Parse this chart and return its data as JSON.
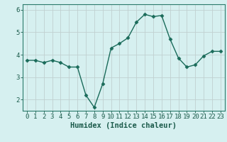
{
  "x": [
    0,
    1,
    2,
    3,
    4,
    5,
    6,
    7,
    8,
    9,
    10,
    11,
    12,
    13,
    14,
    15,
    16,
    17,
    18,
    19,
    20,
    21,
    22,
    23
  ],
  "y": [
    3.75,
    3.75,
    3.65,
    3.75,
    3.65,
    3.45,
    3.45,
    2.2,
    1.65,
    2.7,
    4.3,
    4.5,
    4.75,
    5.45,
    5.8,
    5.7,
    5.75,
    4.7,
    3.85,
    3.45,
    3.55,
    3.95,
    4.15,
    4.15
  ],
  "xlabel": "Humidex (Indice chaleur)",
  "ylim": [
    1.5,
    6.25
  ],
  "xlim": [
    -0.5,
    23.5
  ],
  "yticks": [
    2,
    3,
    4,
    5,
    6
  ],
  "xticks": [
    0,
    1,
    2,
    3,
    4,
    5,
    6,
    7,
    8,
    9,
    10,
    11,
    12,
    13,
    14,
    15,
    16,
    17,
    18,
    19,
    20,
    21,
    22,
    23
  ],
  "line_color": "#1a6b5a",
  "marker": "D",
  "marker_size": 2.5,
  "bg_color": "#d6f0f0",
  "grid_color": "#c0d0d0",
  "axis_color": "#2a7a6a",
  "label_color": "#1a5a4a",
  "tick_label_fontsize": 6.5,
  "xlabel_fontsize": 7.5,
  "linewidth": 1.0
}
